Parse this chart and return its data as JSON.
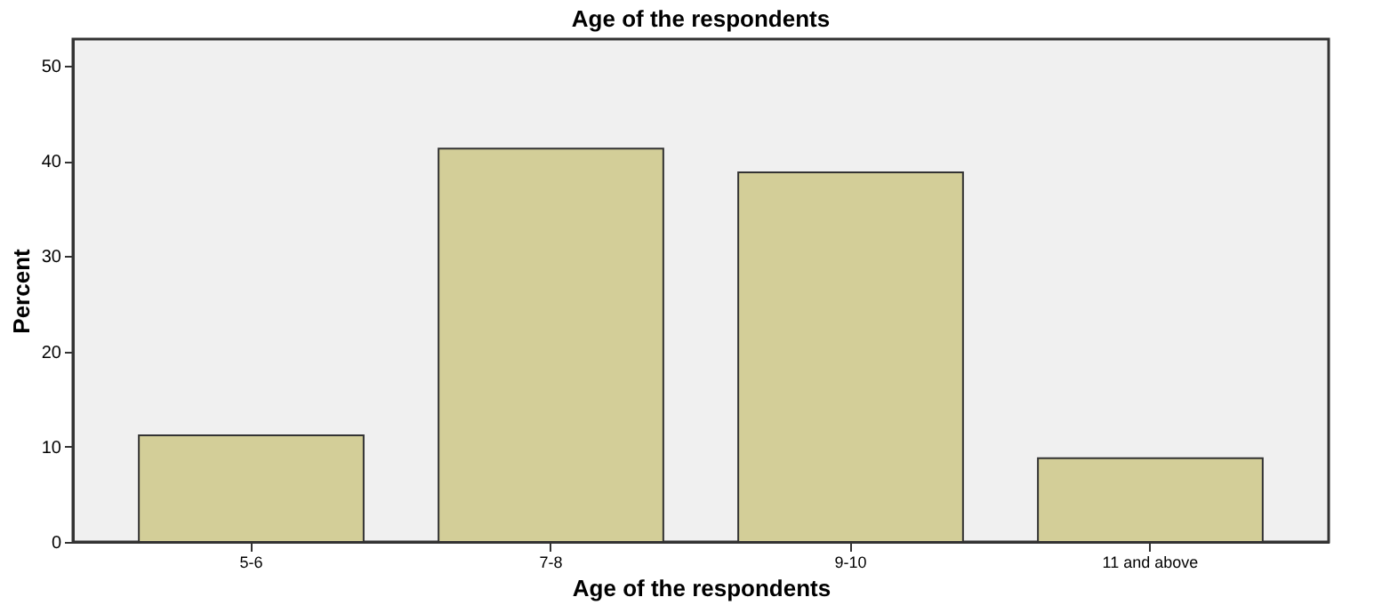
{
  "chart_data": {
    "type": "bar",
    "title": "Age of the respondents",
    "xlabel": "Age of the respondents",
    "ylabel": "Percent",
    "categories": [
      "5-6",
      "7-8",
      "9-10",
      "11 and above"
    ],
    "values": [
      11.2,
      41.3,
      38.8,
      8.8
    ],
    "color": "#d3ce98",
    "ylim": [
      0,
      52.8
    ],
    "yticks": [
      0,
      10,
      20,
      30,
      40,
      50
    ],
    "grid": false
  }
}
